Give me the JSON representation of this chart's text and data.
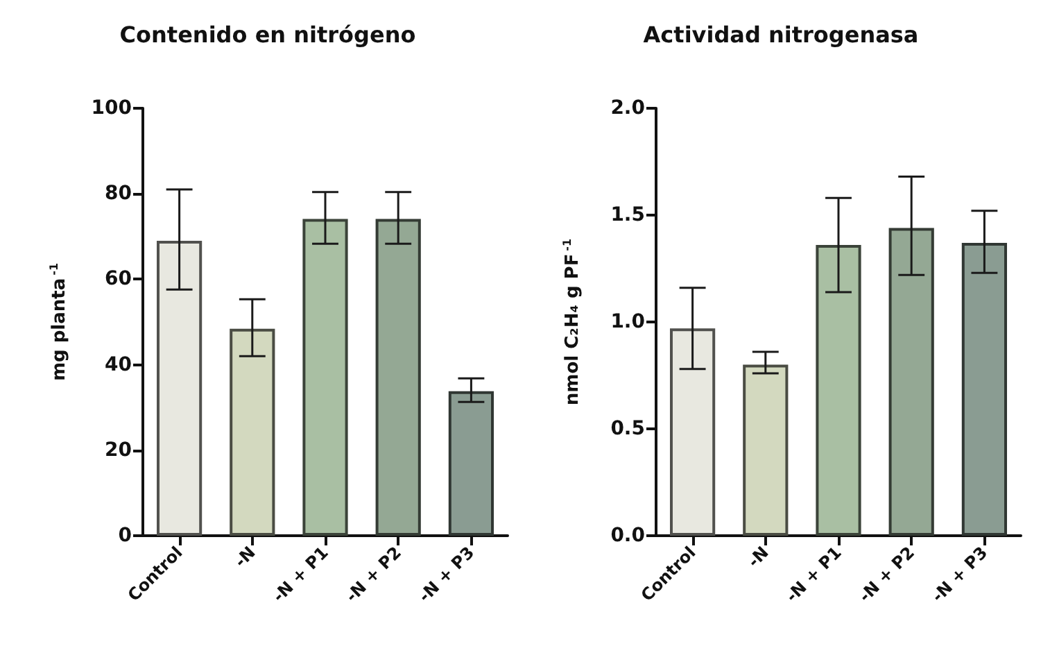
{
  "chart_data": [
    {
      "type": "bar",
      "title": "Contenido en nitrógeno",
      "ylabel": "mg planta$^{-1}$",
      "categories": [
        "Control",
        "-N",
        "-N + P1",
        "-N + P2",
        "-N + P3"
      ],
      "values": [
        69,
        48.4,
        74.1,
        74.1,
        33.8
      ],
      "errors": [
        [
          57.6,
          81
        ],
        [
          42,
          55.3
        ],
        [
          68.3,
          80.4
        ],
        [
          68.3,
          80.4
        ],
        [
          31.3,
          36.8
        ]
      ],
      "colors": [
        "#e8e8e0",
        "#d3d9bf",
        "#a9bfa3",
        "#94a894",
        "#8a9c92"
      ],
      "ylim": [
        0,
        100
      ],
      "yticks": [
        0,
        20,
        40,
        60,
        80,
        100
      ],
      "grid": false
    },
    {
      "type": "bar",
      "title": "Actividad nitrogenasa",
      "ylabel": "nmol C₂H₄ g PF$^{-1}$",
      "categories": [
        "Control",
        "-N",
        "-N + P1",
        "-N + P2",
        "-N + P3"
      ],
      "values": [
        0.97,
        0.8,
        1.36,
        1.44,
        1.37
      ],
      "errors": [
        [
          0.78,
          1.16
        ],
        [
          0.76,
          0.86
        ],
        [
          1.14,
          1.58
        ],
        [
          1.22,
          1.68
        ],
        [
          1.23,
          1.52
        ]
      ],
      "colors": [
        "#e8e8e0",
        "#d3d9bf",
        "#a9bfa3",
        "#94a894",
        "#8a9c92"
      ],
      "ylim": [
        0,
        2.0
      ],
      "yticks": [
        {
          "value": 0,
          "label": "0.0"
        },
        {
          "value": 0.5,
          "label": "0.5"
        },
        {
          "value": 1,
          "label": "1.0"
        },
        {
          "value": 1.5,
          "label": "1.5"
        },
        {
          "value": 2,
          "label": "2.0"
        }
      ],
      "grid": false
    }
  ]
}
